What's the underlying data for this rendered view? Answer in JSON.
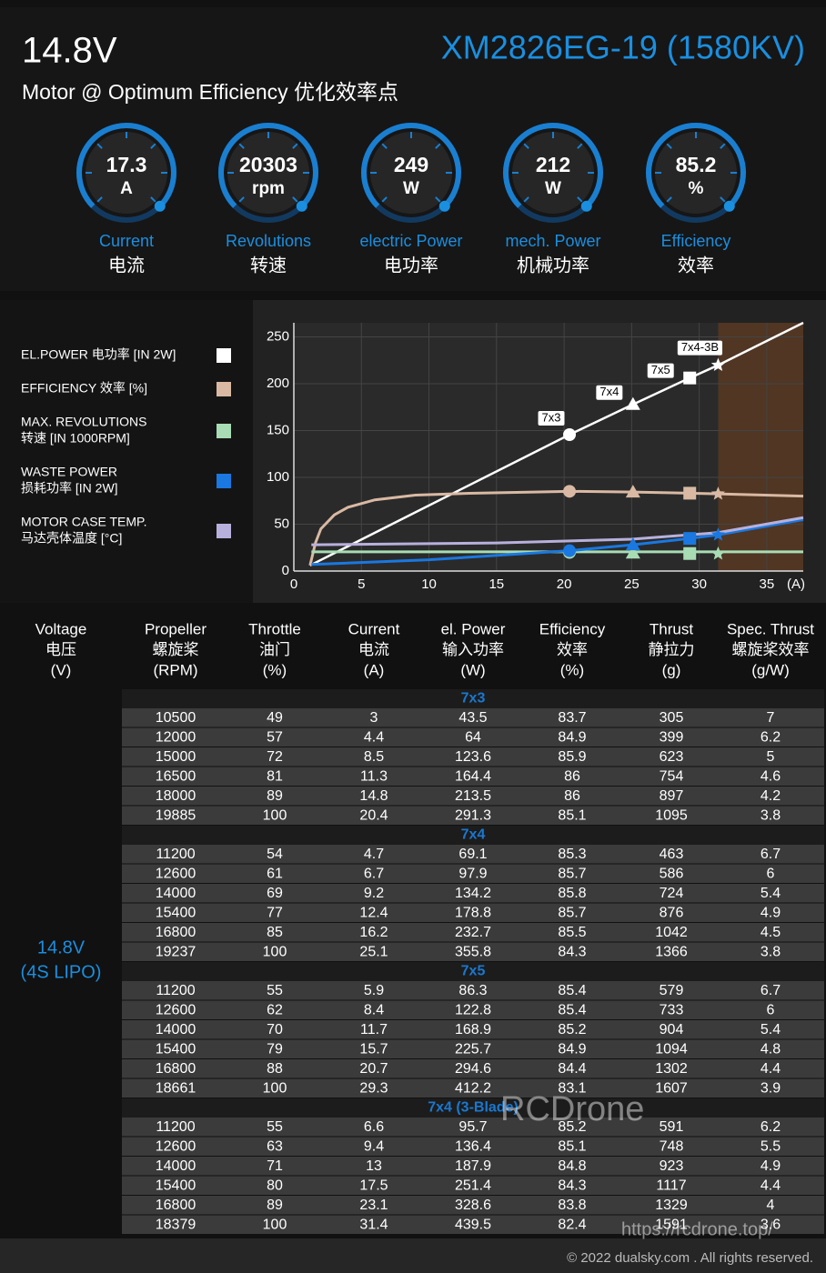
{
  "header": {
    "title": "14.8V",
    "model": "XM2826EG-19 (1580KV)",
    "subtitle": "Motor @ Optimum Efficiency  优化效率点"
  },
  "gauges": [
    {
      "value": 17.3,
      "unit": "A",
      "label": "Current",
      "label_cn": "电流"
    },
    {
      "value": 20303,
      "unit": "rpm",
      "label": "Revolutions",
      "label_cn": "转速"
    },
    {
      "value": 249,
      "unit": "W",
      "label": "electric Power",
      "label_cn": "电功率"
    },
    {
      "value": 212,
      "unit": "W",
      "label": "mech. Power",
      "label_cn": "机械功率"
    },
    {
      "value": 85.2,
      "unit": "%",
      "label": "Efficiency",
      "label_cn": "效率"
    }
  ],
  "chart_data": {
    "type": "line",
    "x_unit_label": "(A)",
    "xlim": [
      0,
      37.7
    ],
    "ylim": [
      0,
      265
    ],
    "xticks": [
      0,
      5,
      10,
      15,
      20,
      25,
      30,
      35
    ],
    "yticks": [
      0,
      50,
      100,
      150,
      200,
      250
    ],
    "grid": true,
    "highlight_xrange": [
      31.4,
      37.7
    ],
    "highlight_color": "#5a3a22",
    "point_x": [
      20.4,
      25.1,
      29.3,
      31.4
    ],
    "point_labels": [
      "7x3",
      "7x4",
      "7x5",
      "7x4-3B"
    ],
    "point_shapes": [
      "circle",
      "triangle",
      "square",
      "star"
    ],
    "series": [
      {
        "name": [
          "EL.POWER 电功率 [IN 2W]"
        ],
        "color": "#ffffff",
        "x": [
          1.2,
          20.4,
          25.1,
          29.3,
          31.4,
          37.7
        ],
        "values": [
          6,
          145.6,
          177.9,
          206.1,
          219.8,
          265
        ],
        "points": [
          145.6,
          177.9,
          206.1,
          219.8
        ]
      },
      {
        "name": [
          "EFFICIENCY 效率 [%]"
        ],
        "color": "#d9b9a3",
        "x": [
          1.2,
          1.6,
          2,
          3,
          4,
          6,
          9,
          13,
          20.4,
          25.1,
          29.3,
          31.4,
          37.7
        ],
        "values": [
          6,
          30,
          45,
          60,
          68,
          76,
          81,
          83,
          85.1,
          84.3,
          83.1,
          82.4,
          80
        ],
        "points": [
          85.1,
          84.3,
          83.1,
          82.4
        ]
      },
      {
        "name": [
          "MAX. REVOLUTIONS",
          "转速 [IN 1000RPM]"
        ],
        "color": "#a8dcb4",
        "x": [
          1.3,
          37.7
        ],
        "values": [
          20.5,
          20.5
        ],
        "points": [
          19.9,
          19.2,
          18.7,
          18.4
        ]
      },
      {
        "name": [
          "WASTE POWER",
          "损耗功率 [IN 2W]"
        ],
        "color": "#1a78e0",
        "x": [
          1.3,
          10,
          20.4,
          25.1,
          29.3,
          31.4,
          37.7
        ],
        "values": [
          7,
          12,
          21.7,
          28,
          34.8,
          38.7,
          55
        ],
        "points": [
          21.7,
          28,
          34.8,
          38.7
        ]
      },
      {
        "name": [
          "MOTOR CASE TEMP.",
          "马达壳体温度 [°C]"
        ],
        "color": "#b8b0dc",
        "x": [
          1.3,
          15,
          25,
          31.4,
          37.7
        ],
        "values": [
          28,
          30,
          34,
          41,
          57
        ]
      }
    ]
  },
  "table": {
    "voltage": [
      "14.8V",
      "(4S LIPO)"
    ],
    "columns": [
      [
        "Voltage",
        "电压",
        "(V)"
      ],
      [
        "Propeller",
        "螺旋桨",
        "(RPM)"
      ],
      [
        "Throttle",
        "油门",
        "(%)"
      ],
      [
        "Current",
        "电流",
        "(A)"
      ],
      [
        "el. Power",
        "输入功率",
        "(W)"
      ],
      [
        "Efficiency",
        "效率",
        "(%)"
      ],
      [
        "Thrust",
        "静拉力",
        "(g)"
      ],
      [
        "Spec. Thrust",
        "螺旋桨效率",
        "(g/W)"
      ]
    ],
    "groups": [
      {
        "title": "7x3",
        "rows": [
          [
            10500,
            49,
            3,
            43.5,
            83.7,
            305,
            7
          ],
          [
            12000,
            57,
            4.4,
            64,
            84.9,
            399,
            6.2
          ],
          [
            15000,
            72,
            8.5,
            123.6,
            85.9,
            623,
            5
          ],
          [
            16500,
            81,
            11.3,
            164.4,
            86,
            754,
            4.6
          ],
          [
            18000,
            89,
            14.8,
            213.5,
            86,
            897,
            4.2
          ],
          [
            19885,
            100,
            20.4,
            291.3,
            85.1,
            1095,
            3.8
          ]
        ]
      },
      {
        "title": "7x4",
        "rows": [
          [
            11200,
            54,
            4.7,
            69.1,
            85.3,
            463,
            6.7
          ],
          [
            12600,
            61,
            6.7,
            97.9,
            85.7,
            586,
            6
          ],
          [
            14000,
            69,
            9.2,
            134.2,
            85.8,
            724,
            5.4
          ],
          [
            15400,
            77,
            12.4,
            178.8,
            85.7,
            876,
            4.9
          ],
          [
            16800,
            85,
            16.2,
            232.7,
            85.5,
            1042,
            4.5
          ],
          [
            19237,
            100,
            25.1,
            355.8,
            84.3,
            1366,
            3.8
          ]
        ]
      },
      {
        "title": "7x5",
        "rows": [
          [
            11200,
            55,
            5.9,
            86.3,
            85.4,
            579,
            6.7
          ],
          [
            12600,
            62,
            8.4,
            122.8,
            85.4,
            733,
            6
          ],
          [
            14000,
            70,
            11.7,
            168.9,
            85.2,
            904,
            5.4
          ],
          [
            15400,
            79,
            15.7,
            225.7,
            84.9,
            1094,
            4.8
          ],
          [
            16800,
            88,
            20.7,
            294.6,
            84.4,
            1302,
            4.4
          ],
          [
            18661,
            100,
            29.3,
            412.2,
            83.1,
            1607,
            3.9
          ]
        ]
      },
      {
        "title": "7x4 (3-Blade)",
        "rows": [
          [
            11200,
            55,
            6.6,
            95.7,
            85.2,
            591,
            6.2
          ],
          [
            12600,
            63,
            9.4,
            136.4,
            85.1,
            748,
            5.5
          ],
          [
            14000,
            71,
            13,
            187.9,
            84.8,
            923,
            4.9
          ],
          [
            15400,
            80,
            17.5,
            251.4,
            84.3,
            1117,
            4.4
          ],
          [
            16800,
            89,
            23.1,
            328.6,
            83.8,
            1329,
            4
          ],
          [
            18379,
            100,
            31.4,
            439.5,
            82.4,
            1591,
            3.6
          ]
        ]
      }
    ]
  },
  "watermark": "RCDrone",
  "url": "https://rcdrone.top/",
  "footer": "© 2022 dualsky.com . All rights reserved."
}
